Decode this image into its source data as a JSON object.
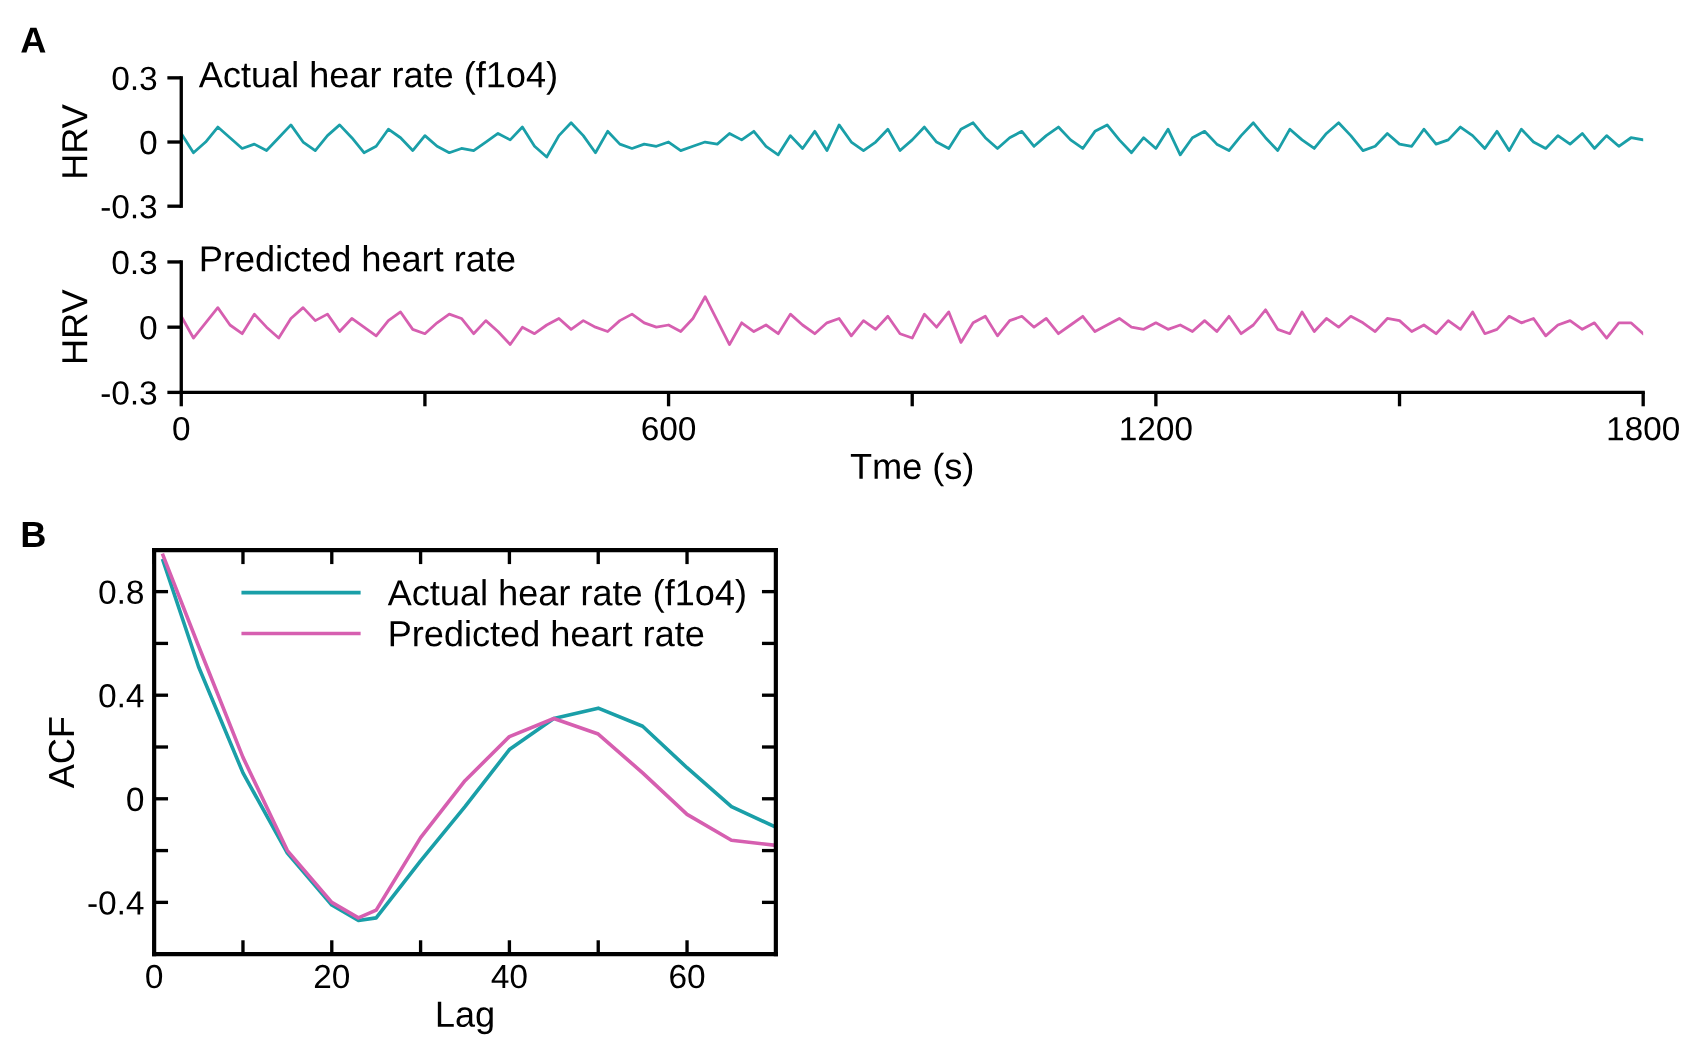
{
  "chart_data": [
    {
      "type": "line",
      "title": "Actual hear rate (f1o4)",
      "ylabel": "HRV",
      "annotations": [
        "A"
      ],
      "tick_labels": "y",
      "x": [
        0,
        15,
        30,
        45,
        60,
        75,
        90,
        105,
        120,
        135,
        150,
        165,
        180,
        195,
        210,
        225,
        240,
        255,
        270,
        285,
        300,
        315,
        330,
        345,
        360,
        375,
        390,
        405,
        420,
        435,
        450,
        465,
        480,
        495,
        510,
        525,
        540,
        555,
        570,
        585,
        600,
        615,
        630,
        645,
        660,
        675,
        690,
        705,
        720,
        735,
        750,
        765,
        780,
        795,
        810,
        825,
        840,
        855,
        870,
        885,
        900,
        915,
        930,
        945,
        960,
        975,
        990,
        1005,
        1020,
        1035,
        1050,
        1065,
        1080,
        1095,
        1110,
        1125,
        1140,
        1155,
        1170,
        1185,
        1200,
        1215,
        1230,
        1245,
        1260,
        1275,
        1290,
        1305,
        1320,
        1335,
        1350,
        1365,
        1380,
        1395,
        1410,
        1425,
        1440,
        1455,
        1470,
        1485,
        1500,
        1515,
        1530,
        1545,
        1560,
        1575,
        1590,
        1605,
        1620,
        1635,
        1650,
        1665,
        1680,
        1695,
        1710,
        1725,
        1740,
        1755,
        1770,
        1785,
        1800
      ],
      "series": [
        {
          "color": "#1a9fa8",
          "values": [
            0.04,
            -0.05,
            0.0,
            0.07,
            0.02,
            -0.03,
            -0.01,
            -0.04,
            0.02,
            0.08,
            0.0,
            -0.04,
            0.03,
            0.08,
            0.02,
            -0.05,
            -0.02,
            0.06,
            0.02,
            -0.04,
            0.03,
            -0.02,
            -0.05,
            -0.03,
            -0.04,
            0.0,
            0.04,
            0.01,
            0.07,
            -0.02,
            -0.07,
            0.03,
            0.09,
            0.03,
            -0.05,
            0.05,
            -0.01,
            -0.03,
            -0.01,
            -0.02,
            0.0,
            -0.04,
            -0.02,
            0.0,
            -0.01,
            0.04,
            0.01,
            0.05,
            -0.02,
            -0.06,
            0.03,
            -0.03,
            0.05,
            -0.04,
            0.08,
            0.0,
            -0.04,
            0.0,
            0.06,
            -0.04,
            0.01,
            0.07,
            0.0,
            -0.03,
            0.06,
            0.09,
            0.02,
            -0.03,
            0.02,
            0.05,
            -0.02,
            0.03,
            0.07,
            0.01,
            -0.03,
            0.05,
            0.08,
            0.01,
            -0.05,
            0.02,
            -0.03,
            0.06,
            -0.06,
            0.02,
            0.05,
            -0.01,
            -0.04,
            0.03,
            0.09,
            0.02,
            -0.04,
            0.06,
            0.01,
            -0.03,
            0.04,
            0.09,
            0.03,
            -0.04,
            -0.02,
            0.04,
            -0.01,
            -0.02,
            0.06,
            -0.01,
            0.01,
            0.07,
            0.03,
            -0.03,
            0.05,
            -0.04,
            0.06,
            0.0,
            -0.03,
            0.03,
            -0.01,
            0.04,
            -0.03,
            0.03,
            -0.02,
            0.02,
            0.01
          ]
        }
      ],
      "xlim": [
        0,
        1800
      ],
      "ylim": [
        -0.3,
        0.3
      ],
      "yticks": [
        -0.3,
        0,
        0.3
      ]
    },
    {
      "type": "line",
      "title": "Predicted heart rate",
      "ylabel": "HRV",
      "xlabel": "Tme (s)",
      "x": [
        0,
        15,
        30,
        45,
        60,
        75,
        90,
        105,
        120,
        135,
        150,
        165,
        180,
        195,
        210,
        225,
        240,
        255,
        270,
        285,
        300,
        315,
        330,
        345,
        360,
        375,
        390,
        405,
        420,
        435,
        450,
        465,
        480,
        495,
        510,
        525,
        540,
        555,
        570,
        585,
        600,
        615,
        630,
        645,
        660,
        675,
        690,
        705,
        720,
        735,
        750,
        765,
        780,
        795,
        810,
        825,
        840,
        855,
        870,
        885,
        900,
        915,
        930,
        945,
        960,
        975,
        990,
        1005,
        1020,
        1035,
        1050,
        1065,
        1080,
        1095,
        1110,
        1125,
        1140,
        1155,
        1170,
        1185,
        1200,
        1215,
        1230,
        1245,
        1260,
        1275,
        1290,
        1305,
        1320,
        1335,
        1350,
        1365,
        1380,
        1395,
        1410,
        1425,
        1440,
        1455,
        1470,
        1485,
        1500,
        1515,
        1530,
        1545,
        1560,
        1575,
        1590,
        1605,
        1620,
        1635,
        1650,
        1665,
        1680,
        1695,
        1710,
        1725,
        1740,
        1755,
        1770,
        1785,
        1800
      ],
      "series": [
        {
          "color": "#d65fb0",
          "values": [
            0.05,
            -0.05,
            0.02,
            0.09,
            0.01,
            -0.03,
            0.06,
            0.0,
            -0.05,
            0.04,
            0.09,
            0.03,
            0.06,
            -0.02,
            0.04,
            0.0,
            -0.04,
            0.03,
            0.07,
            -0.01,
            -0.03,
            0.02,
            0.06,
            0.04,
            -0.03,
            0.03,
            -0.02,
            -0.08,
            0.0,
            -0.03,
            0.01,
            0.04,
            -0.01,
            0.03,
            0.0,
            -0.02,
            0.03,
            0.06,
            0.02,
            0.0,
            0.01,
            -0.02,
            0.04,
            0.14,
            0.03,
            -0.08,
            0.02,
            -0.02,
            0.01,
            -0.03,
            0.06,
            0.01,
            -0.03,
            0.02,
            0.04,
            -0.04,
            0.03,
            -0.01,
            0.05,
            -0.03,
            -0.05,
            0.06,
            0.0,
            0.07,
            -0.07,
            0.02,
            0.05,
            -0.04,
            0.03,
            0.05,
            0.0,
            0.04,
            -0.03,
            0.01,
            0.05,
            -0.02,
            0.01,
            0.04,
            0.0,
            -0.01,
            0.02,
            -0.01,
            0.01,
            -0.02,
            0.03,
            -0.02,
            0.05,
            -0.03,
            0.01,
            0.08,
            -0.01,
            -0.03,
            0.07,
            -0.02,
            0.04,
            0.0,
            0.05,
            0.02,
            -0.02,
            0.04,
            0.03,
            -0.02,
            0.01,
            -0.03,
            0.03,
            -0.01,
            0.07,
            -0.03,
            -0.01,
            0.05,
            0.02,
            0.04,
            -0.04,
            0.01,
            0.03,
            -0.01,
            0.02,
            -0.05,
            0.02,
            0.02,
            -0.03
          ]
        }
      ],
      "xlim": [
        0,
        1800
      ],
      "xticks": [
        0,
        {
          "value": 300,
          "label": null
        },
        600,
        {
          "value": 900,
          "label": null
        },
        1200,
        {
          "value": 1500,
          "label": null
        },
        1800
      ],
      "ylim": [
        -0.3,
        0.3
      ],
      "yticks": [
        -0.3,
        0,
        0.3
      ]
    },
    {
      "type": "line",
      "xlabel": "Lag",
      "ylabel": "ACF",
      "annotations": [
        "B"
      ],
      "legend": "top right",
      "x": [
        1,
        5,
        10,
        15,
        20,
        23,
        25,
        30,
        35,
        40,
        45,
        50,
        55,
        60,
        65,
        70
      ],
      "series": [
        {
          "name": "Actual hear rate (f1o4)",
          "color": "#1a9fa8",
          "values": [
            0.92,
            0.51,
            0.1,
            -0.21,
            -0.41,
            -0.47,
            -0.46,
            -0.24,
            -0.03,
            0.19,
            0.31,
            0.35,
            0.28,
            0.12,
            -0.03,
            -0.11
          ]
        },
        {
          "name": "Predicted heart rate",
          "color": "#d65fb0",
          "values": [
            0.94,
            0.59,
            0.16,
            -0.2,
            -0.4,
            -0.46,
            -0.43,
            -0.15,
            0.07,
            0.24,
            0.31,
            0.25,
            0.1,
            -0.06,
            -0.16,
            -0.18
          ]
        }
      ],
      "xlim": [
        0,
        70
      ],
      "xticks": [
        0,
        {
          "value": 10,
          "label": null
        },
        20,
        {
          "value": 30,
          "label": null
        },
        40,
        {
          "value": 50,
          "label": null
        },
        60
      ],
      "ylim": [
        -0.6,
        0.96
      ],
      "yticks": [
        {
          "value": -0.4,
          "label": "-0.4"
        },
        {
          "value": -0.2,
          "label": null
        },
        0,
        {
          "value": 0.2,
          "label": null
        },
        0.4,
        {
          "value": 0.6,
          "label": null
        },
        0.8
      ]
    }
  ]
}
